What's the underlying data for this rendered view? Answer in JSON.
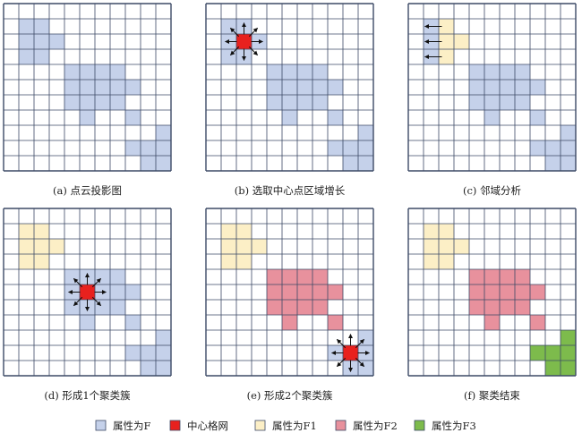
{
  "colors": {
    "F": "#c5d1ea",
    "center": "#e8211e",
    "F1": "#fcefc6",
    "F2": "#e8919d",
    "F3": "#7dbb4c",
    "grid": "#3d4a66"
  },
  "panels": [
    {
      "caption": "(a) 点云投影图",
      "cells": [
        {
          "r": 1,
          "c": 1,
          "k": "F"
        },
        {
          "r": 1,
          "c": 2,
          "k": "F"
        },
        {
          "r": 2,
          "c": 1,
          "k": "F"
        },
        {
          "r": 2,
          "c": 2,
          "k": "F"
        },
        {
          "r": 2,
          "c": 3,
          "k": "F"
        },
        {
          "r": 3,
          "c": 1,
          "k": "F"
        },
        {
          "r": 3,
          "c": 2,
          "k": "F"
        },
        {
          "r": 4,
          "c": 4,
          "k": "F"
        },
        {
          "r": 4,
          "c": 5,
          "k": "F"
        },
        {
          "r": 4,
          "c": 6,
          "k": "F"
        },
        {
          "r": 4,
          "c": 7,
          "k": "F"
        },
        {
          "r": 5,
          "c": 4,
          "k": "F"
        },
        {
          "r": 5,
          "c": 5,
          "k": "F"
        },
        {
          "r": 5,
          "c": 6,
          "k": "F"
        },
        {
          "r": 5,
          "c": 7,
          "k": "F"
        },
        {
          "r": 5,
          "c": 8,
          "k": "F"
        },
        {
          "r": 6,
          "c": 4,
          "k": "F"
        },
        {
          "r": 6,
          "c": 5,
          "k": "F"
        },
        {
          "r": 6,
          "c": 6,
          "k": "F"
        },
        {
          "r": 6,
          "c": 7,
          "k": "F"
        },
        {
          "r": 7,
          "c": 5,
          "k": "F"
        },
        {
          "r": 7,
          "c": 8,
          "k": "F"
        },
        {
          "r": 8,
          "c": 10,
          "k": "F"
        },
        {
          "r": 9,
          "c": 8,
          "k": "F"
        },
        {
          "r": 9,
          "c": 9,
          "k": "F"
        },
        {
          "r": 9,
          "c": 10,
          "k": "F"
        },
        {
          "r": 10,
          "c": 9,
          "k": "F"
        },
        {
          "r": 10,
          "c": 10,
          "k": "F"
        }
      ],
      "arrows": []
    },
    {
      "caption": "(b) 选取中心点区域增长",
      "cells": [
        {
          "r": 1,
          "c": 1,
          "k": "F"
        },
        {
          "r": 1,
          "c": 2,
          "k": "F"
        },
        {
          "r": 2,
          "c": 1,
          "k": "F"
        },
        {
          "r": 2,
          "c": 2,
          "k": "center"
        },
        {
          "r": 2,
          "c": 3,
          "k": "F"
        },
        {
          "r": 3,
          "c": 1,
          "k": "F"
        },
        {
          "r": 3,
          "c": 2,
          "k": "F"
        },
        {
          "r": 4,
          "c": 4,
          "k": "F"
        },
        {
          "r": 4,
          "c": 5,
          "k": "F"
        },
        {
          "r": 4,
          "c": 6,
          "k": "F"
        },
        {
          "r": 4,
          "c": 7,
          "k": "F"
        },
        {
          "r": 5,
          "c": 4,
          "k": "F"
        },
        {
          "r": 5,
          "c": 5,
          "k": "F"
        },
        {
          "r": 5,
          "c": 6,
          "k": "F"
        },
        {
          "r": 5,
          "c": 7,
          "k": "F"
        },
        {
          "r": 5,
          "c": 8,
          "k": "F"
        },
        {
          "r": 6,
          "c": 4,
          "k": "F"
        },
        {
          "r": 6,
          "c": 5,
          "k": "F"
        },
        {
          "r": 6,
          "c": 6,
          "k": "F"
        },
        {
          "r": 6,
          "c": 7,
          "k": "F"
        },
        {
          "r": 7,
          "c": 5,
          "k": "F"
        },
        {
          "r": 7,
          "c": 8,
          "k": "F"
        },
        {
          "r": 8,
          "c": 10,
          "k": "F"
        },
        {
          "r": 9,
          "c": 8,
          "k": "F"
        },
        {
          "r": 9,
          "c": 9,
          "k": "F"
        },
        {
          "r": 9,
          "c": 10,
          "k": "F"
        },
        {
          "r": 10,
          "c": 9,
          "k": "F"
        },
        {
          "r": 10,
          "c": 10,
          "k": "F"
        }
      ],
      "arrows": [
        {
          "type": "star",
          "r": 2,
          "c": 2
        }
      ]
    },
    {
      "caption": "(c) 邻域分析",
      "cells": [
        {
          "r": 1,
          "c": 1,
          "k": "F"
        },
        {
          "r": 1,
          "c": 2,
          "k": "F1"
        },
        {
          "r": 2,
          "c": 1,
          "k": "F"
        },
        {
          "r": 2,
          "c": 2,
          "k": "F1"
        },
        {
          "r": 2,
          "c": 3,
          "k": "F1"
        },
        {
          "r": 3,
          "c": 1,
          "k": "F"
        },
        {
          "r": 3,
          "c": 2,
          "k": "F1"
        },
        {
          "r": 4,
          "c": 4,
          "k": "F"
        },
        {
          "r": 4,
          "c": 5,
          "k": "F"
        },
        {
          "r": 4,
          "c": 6,
          "k": "F"
        },
        {
          "r": 4,
          "c": 7,
          "k": "F"
        },
        {
          "r": 5,
          "c": 4,
          "k": "F"
        },
        {
          "r": 5,
          "c": 5,
          "k": "F"
        },
        {
          "r": 5,
          "c": 6,
          "k": "F"
        },
        {
          "r": 5,
          "c": 7,
          "k": "F"
        },
        {
          "r": 5,
          "c": 8,
          "k": "F"
        },
        {
          "r": 6,
          "c": 4,
          "k": "F"
        },
        {
          "r": 6,
          "c": 5,
          "k": "F"
        },
        {
          "r": 6,
          "c": 6,
          "k": "F"
        },
        {
          "r": 6,
          "c": 7,
          "k": "F"
        },
        {
          "r": 7,
          "c": 5,
          "k": "F"
        },
        {
          "r": 7,
          "c": 8,
          "k": "F"
        },
        {
          "r": 8,
          "c": 10,
          "k": "F"
        },
        {
          "r": 9,
          "c": 8,
          "k": "F"
        },
        {
          "r": 9,
          "c": 9,
          "k": "F"
        },
        {
          "r": 9,
          "c": 10,
          "k": "F"
        },
        {
          "r": 10,
          "c": 9,
          "k": "F"
        },
        {
          "r": 10,
          "c": 10,
          "k": "F"
        }
      ],
      "arrows": [
        {
          "type": "left",
          "r": 1,
          "c": 1
        },
        {
          "type": "left",
          "r": 2,
          "c": 1
        },
        {
          "type": "left",
          "r": 3,
          "c": 1
        }
      ]
    },
    {
      "caption": "(d) 形成1个聚类簇",
      "cells": [
        {
          "r": 1,
          "c": 1,
          "k": "F1"
        },
        {
          "r": 1,
          "c": 2,
          "k": "F1"
        },
        {
          "r": 2,
          "c": 1,
          "k": "F1"
        },
        {
          "r": 2,
          "c": 2,
          "k": "F1"
        },
        {
          "r": 2,
          "c": 3,
          "k": "F1"
        },
        {
          "r": 3,
          "c": 1,
          "k": "F1"
        },
        {
          "r": 3,
          "c": 2,
          "k": "F1"
        },
        {
          "r": 4,
          "c": 4,
          "k": "F"
        },
        {
          "r": 4,
          "c": 5,
          "k": "F"
        },
        {
          "r": 4,
          "c": 6,
          "k": "F"
        },
        {
          "r": 4,
          "c": 7,
          "k": "F"
        },
        {
          "r": 5,
          "c": 4,
          "k": "F"
        },
        {
          "r": 5,
          "c": 5,
          "k": "center"
        },
        {
          "r": 5,
          "c": 6,
          "k": "F"
        },
        {
          "r": 5,
          "c": 7,
          "k": "F"
        },
        {
          "r": 5,
          "c": 8,
          "k": "F"
        },
        {
          "r": 6,
          "c": 4,
          "k": "F"
        },
        {
          "r": 6,
          "c": 5,
          "k": "F"
        },
        {
          "r": 6,
          "c": 6,
          "k": "F"
        },
        {
          "r": 6,
          "c": 7,
          "k": "F"
        },
        {
          "r": 7,
          "c": 5,
          "k": "F"
        },
        {
          "r": 7,
          "c": 8,
          "k": "F"
        },
        {
          "r": 8,
          "c": 10,
          "k": "F"
        },
        {
          "r": 9,
          "c": 8,
          "k": "F"
        },
        {
          "r": 9,
          "c": 9,
          "k": "F"
        },
        {
          "r": 9,
          "c": 10,
          "k": "F"
        },
        {
          "r": 10,
          "c": 9,
          "k": "F"
        },
        {
          "r": 10,
          "c": 10,
          "k": "F"
        }
      ],
      "arrows": [
        {
          "type": "star",
          "r": 5,
          "c": 5
        }
      ]
    },
    {
      "caption": "(e) 形成2个聚类簇",
      "cells": [
        {
          "r": 1,
          "c": 1,
          "k": "F1"
        },
        {
          "r": 1,
          "c": 2,
          "k": "F1"
        },
        {
          "r": 2,
          "c": 1,
          "k": "F1"
        },
        {
          "r": 2,
          "c": 2,
          "k": "F1"
        },
        {
          "r": 2,
          "c": 3,
          "k": "F1"
        },
        {
          "r": 3,
          "c": 1,
          "k": "F1"
        },
        {
          "r": 3,
          "c": 2,
          "k": "F1"
        },
        {
          "r": 4,
          "c": 4,
          "k": "F2"
        },
        {
          "r": 4,
          "c": 5,
          "k": "F2"
        },
        {
          "r": 4,
          "c": 6,
          "k": "F2"
        },
        {
          "r": 4,
          "c": 7,
          "k": "F2"
        },
        {
          "r": 5,
          "c": 4,
          "k": "F2"
        },
        {
          "r": 5,
          "c": 5,
          "k": "F2"
        },
        {
          "r": 5,
          "c": 6,
          "k": "F2"
        },
        {
          "r": 5,
          "c": 7,
          "k": "F2"
        },
        {
          "r": 5,
          "c": 8,
          "k": "F2"
        },
        {
          "r": 6,
          "c": 4,
          "k": "F2"
        },
        {
          "r": 6,
          "c": 5,
          "k": "F2"
        },
        {
          "r": 6,
          "c": 6,
          "k": "F2"
        },
        {
          "r": 6,
          "c": 7,
          "k": "F2"
        },
        {
          "r": 7,
          "c": 5,
          "k": "F2"
        },
        {
          "r": 7,
          "c": 8,
          "k": "F2"
        },
        {
          "r": 8,
          "c": 10,
          "k": "F"
        },
        {
          "r": 9,
          "c": 8,
          "k": "F"
        },
        {
          "r": 9,
          "c": 9,
          "k": "center"
        },
        {
          "r": 9,
          "c": 10,
          "k": "F"
        },
        {
          "r": 10,
          "c": 9,
          "k": "F"
        },
        {
          "r": 10,
          "c": 10,
          "k": "F"
        }
      ],
      "arrows": [
        {
          "type": "star",
          "r": 9,
          "c": 9
        }
      ]
    },
    {
      "caption": "(f) 聚类结束",
      "cells": [
        {
          "r": 1,
          "c": 1,
          "k": "F1"
        },
        {
          "r": 1,
          "c": 2,
          "k": "F1"
        },
        {
          "r": 2,
          "c": 1,
          "k": "F1"
        },
        {
          "r": 2,
          "c": 2,
          "k": "F1"
        },
        {
          "r": 2,
          "c": 3,
          "k": "F1"
        },
        {
          "r": 3,
          "c": 1,
          "k": "F1"
        },
        {
          "r": 3,
          "c": 2,
          "k": "F1"
        },
        {
          "r": 4,
          "c": 4,
          "k": "F2"
        },
        {
          "r": 4,
          "c": 5,
          "k": "F2"
        },
        {
          "r": 4,
          "c": 6,
          "k": "F2"
        },
        {
          "r": 4,
          "c": 7,
          "k": "F2"
        },
        {
          "r": 5,
          "c": 4,
          "k": "F2"
        },
        {
          "r": 5,
          "c": 5,
          "k": "F2"
        },
        {
          "r": 5,
          "c": 6,
          "k": "F2"
        },
        {
          "r": 5,
          "c": 7,
          "k": "F2"
        },
        {
          "r": 5,
          "c": 8,
          "k": "F2"
        },
        {
          "r": 6,
          "c": 4,
          "k": "F2"
        },
        {
          "r": 6,
          "c": 5,
          "k": "F2"
        },
        {
          "r": 6,
          "c": 6,
          "k": "F2"
        },
        {
          "r": 6,
          "c": 7,
          "k": "F2"
        },
        {
          "r": 7,
          "c": 5,
          "k": "F2"
        },
        {
          "r": 7,
          "c": 8,
          "k": "F2"
        },
        {
          "r": 8,
          "c": 10,
          "k": "F3"
        },
        {
          "r": 9,
          "c": 8,
          "k": "F3"
        },
        {
          "r": 9,
          "c": 9,
          "k": "F3"
        },
        {
          "r": 9,
          "c": 10,
          "k": "F3"
        },
        {
          "r": 10,
          "c": 9,
          "k": "F3"
        },
        {
          "r": 10,
          "c": 10,
          "k": "F3"
        }
      ],
      "arrows": []
    }
  ],
  "legend": [
    {
      "key": "F",
      "label": "属性为F"
    },
    {
      "key": "center",
      "label": "中心格网"
    },
    {
      "key": "F1",
      "label": "属性为F1"
    },
    {
      "key": "F2",
      "label": "属性为F2"
    },
    {
      "key": "F3",
      "label": "属性为F3"
    }
  ]
}
